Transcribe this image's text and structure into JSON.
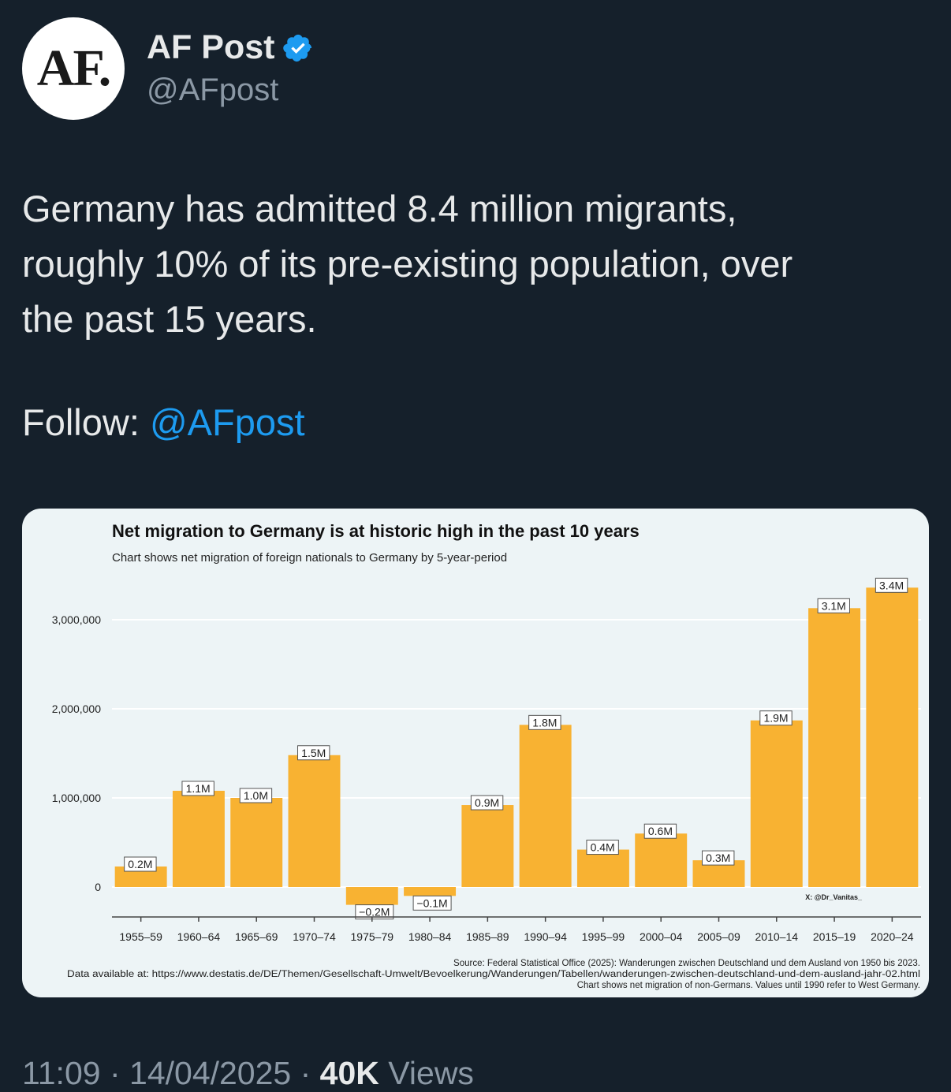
{
  "account": {
    "avatar_text": "AF.",
    "display_name": "AF Post",
    "handle": "@AFpost"
  },
  "tweet": {
    "lines": [
      "Germany has admitted 8.4 million migrants,",
      "roughly 10% of its pre-existing population, over",
      "the past 15 years."
    ],
    "follow_label": "Follow:",
    "follow_handle": "@AFpost"
  },
  "footer": {
    "time": "11:09",
    "date": "14/04/2025",
    "views_count": "40K",
    "views_label": "Views"
  },
  "colors": {
    "accent": "#1d9bf0",
    "bar": "#f8b232",
    "chart_bg": "#edf4f6"
  },
  "chart_data": {
    "type": "bar",
    "title": "Net migration to Germany is at historic high in the past 10 years",
    "subtitle": "Chart shows net migration of foreign nationals to Germany by 5-year-period",
    "categories": [
      "1955–59",
      "1960–64",
      "1965–69",
      "1970–74",
      "1975–79",
      "1980–84",
      "1985–89",
      "1990–94",
      "1995–99",
      "2000–04",
      "2005–09",
      "2010–14",
      "2015–19",
      "2020–24"
    ],
    "values": [
      230000,
      1080000,
      1000000,
      1480000,
      -200000,
      -100000,
      920000,
      1820000,
      420000,
      600000,
      300000,
      1870000,
      3130000,
      3360000
    ],
    "data_labels": [
      "0.2M",
      "1.1M",
      "1.0M",
      "1.5M",
      "−0.2M",
      "−0.1M",
      "0.9M",
      "1.8M",
      "0.4M",
      "0.6M",
      "0.3M",
      "1.9M",
      "3.1M",
      "3.4M"
    ],
    "y_ticks": [
      0,
      1000000,
      2000000,
      3000000
    ],
    "y_tick_labels": [
      "0",
      "1,000,000",
      "2,000,000",
      "3,000,000"
    ],
    "ylim": [
      -350000,
      3500000
    ],
    "grid": true,
    "watermark": "X: @Dr_Vanitas_",
    "source_lines": [
      "Source: Federal Statistical Office (2025): Wanderungen zwischen Deutschland und dem Ausland von 1950 bis 2023.",
      "Data available at: https://www.destatis.de/DE/Themen/Gesellschaft-Umwelt/Bevoelkerung/Wanderungen/Tabellen/wanderungen-zwischen-deutschland-und-dem-ausland-jahr-02.html",
      "Chart shows net migration of non-Germans. Values until 1990 refer to West Germany."
    ]
  }
}
